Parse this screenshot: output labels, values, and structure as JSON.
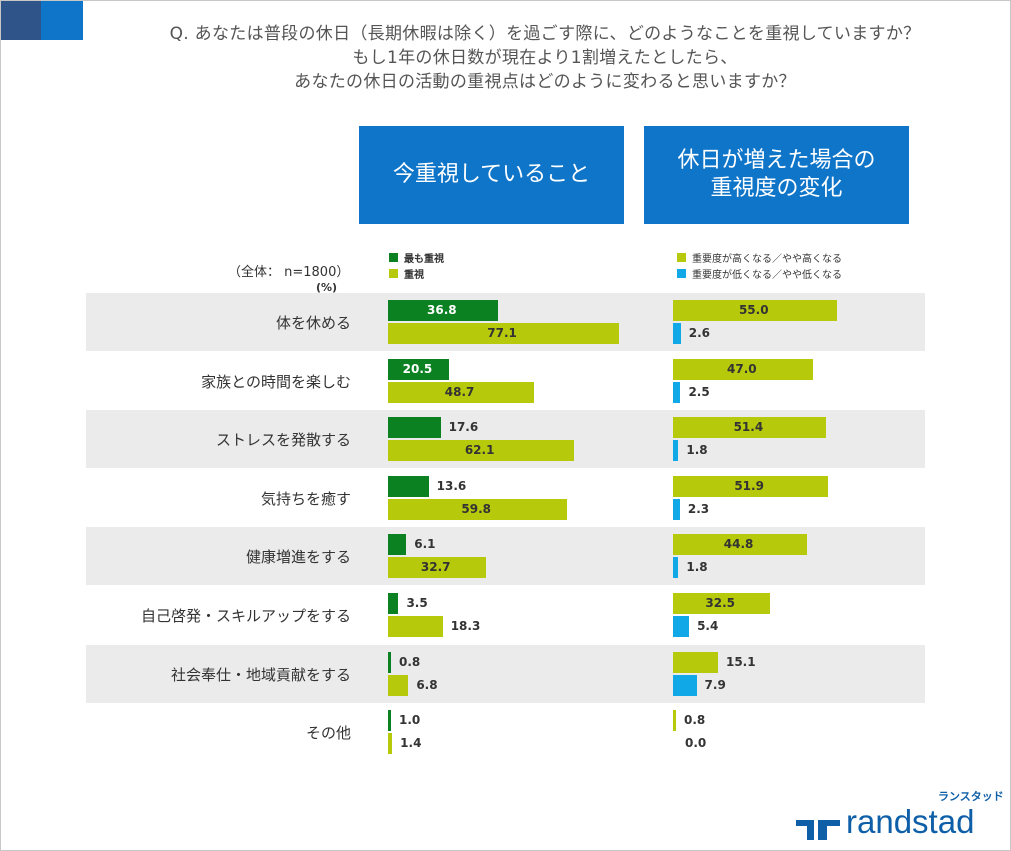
{
  "question": {
    "lines": [
      "Q. あなたは普段の休日（長期休暇は除く）を過ごす際に、どのようなことを重視していますか？",
      "もし1年の休日数が現在より1割増えたとしたら、",
      "あなたの休日の活動の重視点はどのように変わると思いますか？"
    ]
  },
  "headers": {
    "now": "今重視していること",
    "change_line1": "休日が増えた場合の",
    "change_line2": "重視度の変化"
  },
  "base_label": "（全体： n=1800）",
  "unit_label": "(%)",
  "legend": {
    "left": [
      {
        "label": "最も重視",
        "color": "#0b8121"
      },
      {
        "label": "重視",
        "color": "#b7c90b"
      }
    ],
    "right": [
      {
        "label": "重要度が高くなる／やや高くなる",
        "color": "#b7c90b"
      },
      {
        "label": "重要度が低くなる／やや低くなる",
        "color": "#11a8e8"
      }
    ]
  },
  "logo": {
    "jp": "ランスタッド",
    "name": "randstad",
    "color": "#0f5fa8"
  },
  "chart_data": [
    {
      "type": "bar",
      "title": "今重視していること",
      "categories": [
        "体を休める",
        "家族との時間を楽しむ",
        "ストレスを発散する",
        "気持ちを癒す",
        "健康増進をする",
        "自己啓発・スキルアップをする",
        "社会奉仕・地域貢献をする",
        "その他"
      ],
      "series": [
        {
          "name": "最も重視",
          "color": "#0b8121",
          "values": [
            36.8,
            20.5,
            17.6,
            13.6,
            6.1,
            3.5,
            0.8,
            1.0
          ]
        },
        {
          "name": "重視",
          "color": "#b7c90b",
          "values": [
            77.1,
            48.7,
            62.1,
            59.8,
            32.7,
            18.3,
            6.8,
            1.4
          ]
        }
      ]
    },
    {
      "type": "bar",
      "title": "休日が増えた場合の重視度の変化",
      "categories": [
        "体を休める",
        "家族との時間を楽しむ",
        "ストレスを発散する",
        "気持ちを癒す",
        "健康増進をする",
        "自己啓発・スキルアップをする",
        "社会奉仕・地域貢献をする",
        "その他"
      ],
      "series": [
        {
          "name": "重要度が高くなる／やや高くなる",
          "color": "#b7c90b",
          "values": [
            55.0,
            47.0,
            51.4,
            51.9,
            44.8,
            32.5,
            15.1,
            0.8
          ]
        },
        {
          "name": "重要度が低くなる／やや低くなる",
          "color": "#11a8e8",
          "values": [
            2.6,
            2.5,
            1.8,
            2.3,
            1.8,
            5.4,
            7.9,
            0.0
          ]
        }
      ]
    }
  ]
}
